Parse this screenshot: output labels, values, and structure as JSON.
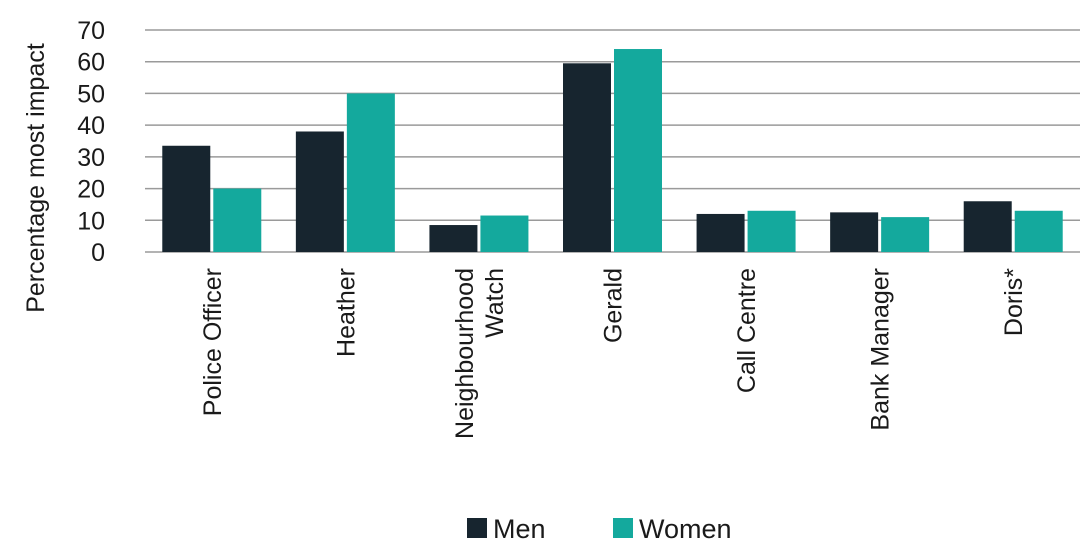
{
  "chart_data": {
    "type": "bar",
    "ylabel": "Percentage most impact",
    "xlabel": "",
    "ylim": [
      0,
      70
    ],
    "yticks": [
      0,
      10,
      20,
      30,
      40,
      50,
      60,
      70
    ],
    "grid": true,
    "legend_position": "bottom",
    "categories": [
      [
        "Police Officer"
      ],
      [
        "Heather"
      ],
      [
        "Neighbourhood",
        "Watch"
      ],
      [
        "Gerald"
      ],
      [
        "Call Centre"
      ],
      [
        "Bank Manager"
      ],
      [
        "Doris*"
      ]
    ],
    "series": [
      {
        "name": "Men",
        "color": "#17252f",
        "values": [
          33.5,
          38,
          8.5,
          59.5,
          12,
          12.5,
          16
        ]
      },
      {
        "name": "Women",
        "color": "#14a99d",
        "values": [
          20,
          50,
          11.5,
          64,
          13,
          11,
          13
        ]
      }
    ]
  }
}
